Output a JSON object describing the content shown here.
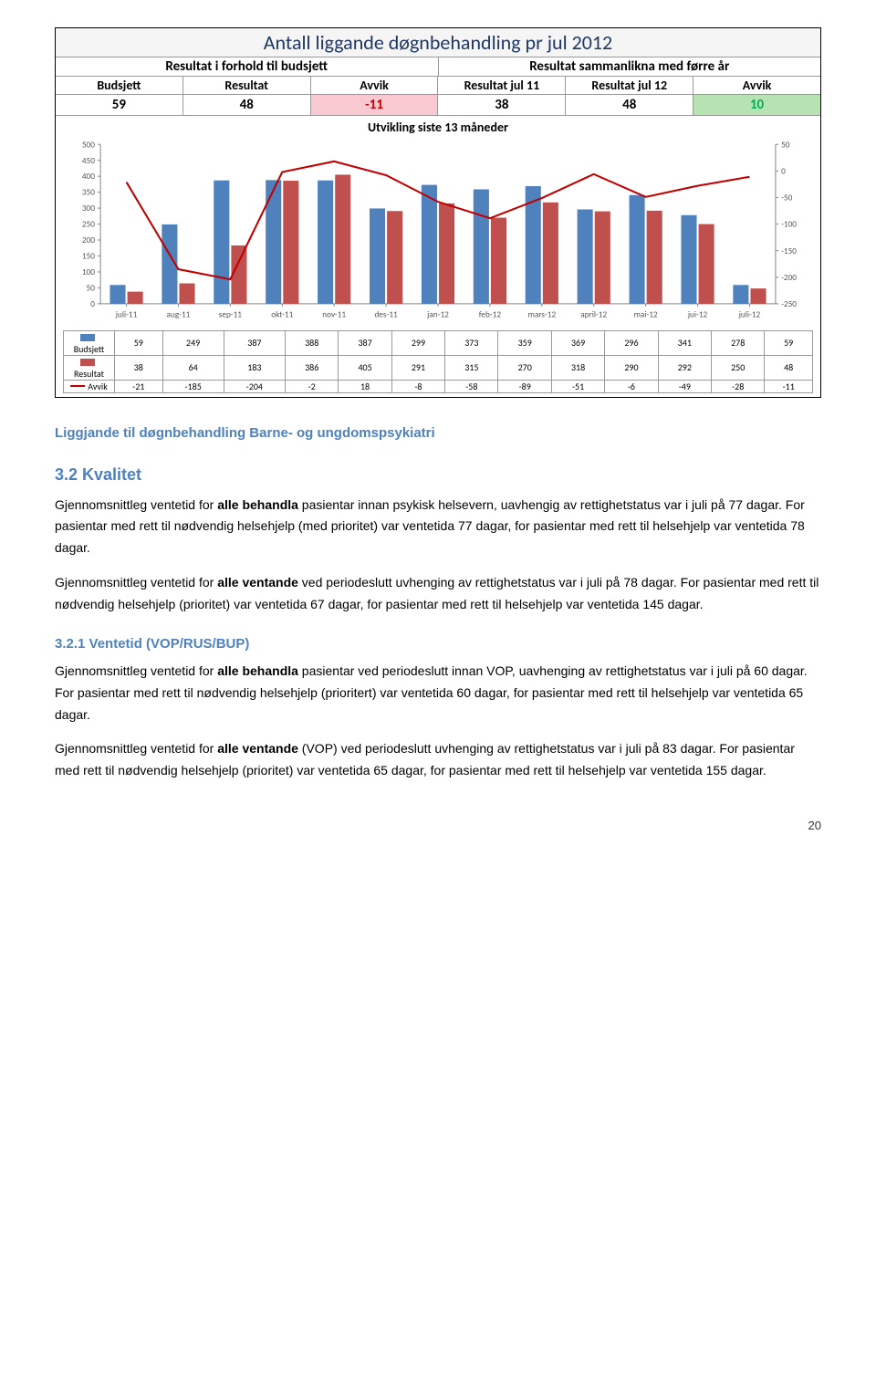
{
  "table": {
    "title": "Antall liggande døgnbehandling pr jul 2012",
    "title_color": "#1f3864",
    "group_headers": [
      "Resultat i forhold til budsjett",
      "Resultat sammanlikna med førre år"
    ],
    "col_headers": [
      "Budsjett",
      "Resultat",
      "Avvik",
      "Resultat jul 11",
      "Resultat jul 12",
      "Avvik"
    ],
    "values": [
      "59",
      "48",
      "-11",
      "38",
      "48",
      "10"
    ],
    "value_bg": [
      "#ffffff",
      "#ffffff",
      "#f8c9d0",
      "#ffffff",
      "#ffffff",
      "#b7e3b3"
    ],
    "value_colors": [
      "#000000",
      "#000000",
      "#c00000",
      "#000000",
      "#000000",
      "#00b050"
    ]
  },
  "chart": {
    "title": "Utvikling siste 13 måneder",
    "type": "bar+line",
    "categories": [
      "juli-11",
      "aug-11",
      "sep-11",
      "okt-11",
      "nov-11",
      "des-11",
      "jan-12",
      "feb-12",
      "mars-12",
      "april-12",
      "mai-12",
      "jui-12",
      "juli-12"
    ],
    "series": [
      {
        "name": "Budsjett",
        "type": "bar",
        "color": "#4f81bd",
        "values": [
          59,
          249,
          387,
          388,
          387,
          299,
          373,
          359,
          369,
          296,
          341,
          278,
          59
        ]
      },
      {
        "name": "Resultat",
        "type": "bar",
        "color": "#c0504d",
        "values": [
          38,
          64,
          183,
          386,
          405,
          291,
          315,
          270,
          318,
          290,
          292,
          250,
          48
        ]
      },
      {
        "name": "Avvik",
        "type": "line",
        "color": "#c00000",
        "values": [
          -21,
          -185,
          -204,
          -2,
          18,
          -8,
          -58,
          -89,
          -51,
          -6,
          -49,
          -28,
          -11
        ]
      }
    ],
    "left_ylim": [
      0,
      500
    ],
    "left_ytick_step": 50,
    "right_ylim": [
      -250,
      50
    ],
    "right_ytick_step": 50,
    "background_color": "#ffffff",
    "grid_color": "#d9d9d9",
    "axis_color": "#888888",
    "label_fontsize": 9,
    "axis_label_fontsize": 9
  },
  "text": {
    "h1": "Liggjande til døgnbehandling Barne- og ungdomspsykiatri",
    "h2": "3.2  Kvalitet",
    "p1a": "Gjennomsnittleg ventetid for ",
    "p1b": "alle behandla",
    "p1c": " pasientar innan psykisk helsevern, uavhengig av rettighetstatus var i juli på 77 dagar. For pasientar med rett til nødvendig helsehjelp (med prioritet) var ventetida 77 dagar, for pasientar med rett til helsehjelp var ventetida 78 dagar.",
    "p2a": "Gjennomsnittleg ventetid for ",
    "p2b": "alle ventande",
    "p2c": " ved periodeslutt uvhenging av rettighetstatus var i juli på 78 dagar. For pasientar med rett til nødvendig helsehjelp (prioritet) var ventetida 67 dagar, for pasientar med rett til helsehjelp var ventetida 145 dagar.",
    "h3": "3.2.1   Ventetid (VOP/RUS/BUP)",
    "p3a": "Gjennomsnittleg ventetid for ",
    "p3b": "alle behandla",
    "p3c": " pasientar ved periodeslutt innan VOP, uavhenging av rettighetstatus var i juli på 60 dagar.  For pasientar med rett til nødvendig helsehjelp (prioritert) var ventetida 60 dagar, for pasientar med rett til helsehjelp var ventetida 65 dagar.",
    "p4a": "Gjennomsnittleg ventetid for ",
    "p4b": "alle ventande",
    "p4c": " (VOP) ved periodeslutt uvhenging av rettighetstatus var i juli på 83 dagar. For pasientar med rett til nødvendig helsehjelp (prioritet) var ventetida 65 dagar, for pasientar med rett til helsehjelp var ventetida 155 dagar.",
    "page": "20"
  }
}
